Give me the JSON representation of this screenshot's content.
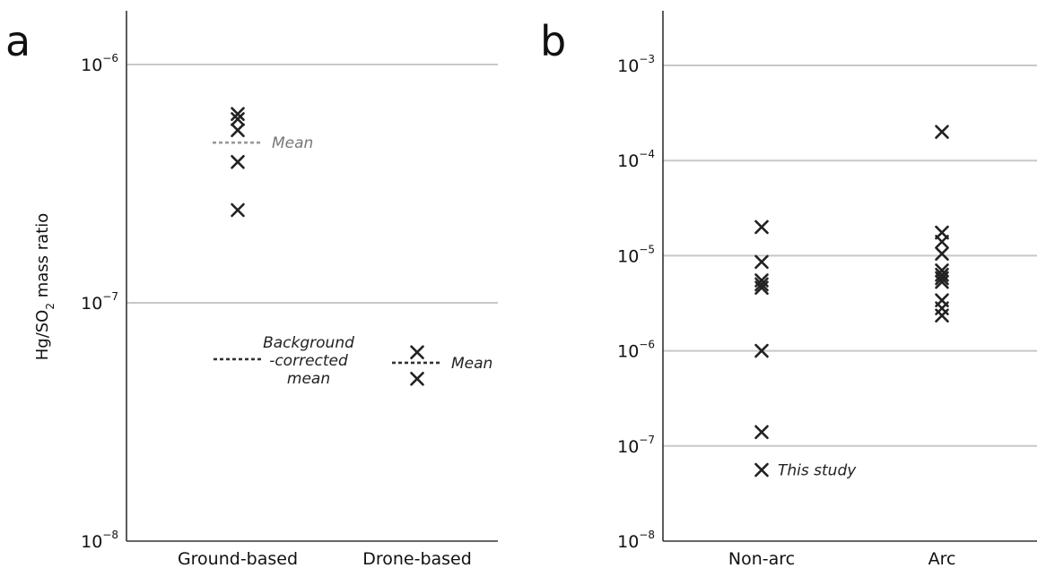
{
  "chart_data": [
    {
      "panel": "a",
      "type": "scatter",
      "ylabel": "Hg/SO2 mass ratio",
      "ylabel_main": "Hg/SO",
      "ylabel_sub": "2",
      "ylabel_rest": " mass ratio",
      "yscale": "log",
      "ylim": [
        1e-08,
        1.7e-06
      ],
      "yticks": [
        {
          "value": 1e-06,
          "base": "10",
          "exp": "−6"
        },
        {
          "value": 1e-07,
          "base": "10",
          "exp": "−7"
        },
        {
          "value": 1e-08,
          "base": "10",
          "exp": "−8"
        }
      ],
      "categories": [
        "Ground-based",
        "Drone-based"
      ],
      "points": [
        {
          "category": "Ground-based",
          "values": [
            6.2e-07,
            5.9e-07,
            5.3e-07,
            3.9e-07,
            2.45e-07
          ]
        },
        {
          "category": "Drone-based",
          "values": [
            6.2e-08,
            4.8e-08
          ]
        }
      ],
      "reference_lines": [
        {
          "category": "Ground-based",
          "value": 4.7e-07,
          "label": "Mean",
          "style": "light-dashed"
        },
        {
          "category": "Ground-based",
          "value": 5.8e-08,
          "label_lines": [
            "Background",
            "-corrected",
            "mean"
          ],
          "style": "dark-dashed"
        },
        {
          "category": "Drone-based",
          "value": 5.6e-08,
          "label": "Mean",
          "style": "dark-dashed"
        }
      ],
      "grid": true
    },
    {
      "panel": "b",
      "type": "scatter",
      "yscale": "log",
      "ylim": [
        1e-08,
        0.0017
      ],
      "yticks": [
        {
          "value": 0.001,
          "base": "10",
          "exp": "−3"
        },
        {
          "value": 0.0001,
          "base": "10",
          "exp": "−4"
        },
        {
          "value": 1e-05,
          "base": "10",
          "exp": "−5"
        },
        {
          "value": 1e-06,
          "base": "10",
          "exp": "−6"
        },
        {
          "value": 1e-07,
          "base": "10",
          "exp": "−7"
        },
        {
          "value": 1e-08,
          "base": "10",
          "exp": "−8"
        }
      ],
      "categories": [
        "Non-arc",
        "Arc"
      ],
      "points": [
        {
          "category": "Non-arc",
          "values": [
            2e-05,
            8.6e-06,
            5.5e-06,
            5e-06,
            4.6e-06,
            1e-06,
            1.4e-07,
            5.6e-08
          ]
        },
        {
          "category": "Arc",
          "values": [
            0.0002,
            1.75e-05,
            1.4e-05,
            1.05e-05,
            7e-06,
            6.3e-06,
            5.8e-06,
            5.3e-06,
            3.4e-06,
            2.8e-06,
            2.35e-06
          ]
        }
      ],
      "annotations": [
        {
          "category": "Non-arc",
          "value": 5.6e-08,
          "label": "This study"
        }
      ],
      "grid": true
    }
  ]
}
